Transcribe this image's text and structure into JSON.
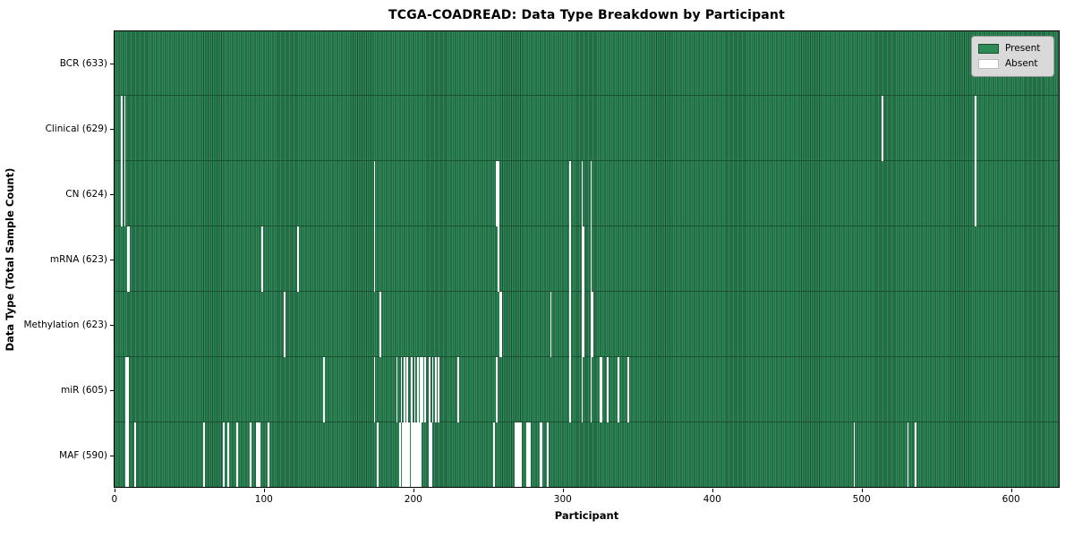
{
  "title": "TCGA-COADREAD: Data Type Breakdown by Participant",
  "x_axis": {
    "label": "Participant",
    "ticks": [
      0,
      100,
      200,
      300,
      400,
      500,
      600
    ]
  },
  "y_axis": {
    "label": "Data Type (Total Sample Count)"
  },
  "legend": [
    {
      "label": "Present",
      "color": "#2e8b57"
    },
    {
      "label": "Absent",
      "color": "#ffffff"
    }
  ],
  "colors": {
    "present": "#2e8b57",
    "present_edge": "#1b4f34",
    "absent": "#ffffff",
    "spine": "#000000",
    "legend_bg": "#d9d9d9",
    "legend_border": "#9a9a9a"
  },
  "chart_data": {
    "type": "heatmap",
    "title": "TCGA-COADREAD: Data Type Breakdown by Participant",
    "xlabel": "Participant",
    "ylabel": "Data Type (Total Sample Count)",
    "xlim": [
      0,
      633
    ],
    "xticks": [
      0,
      100,
      200,
      300,
      400,
      500,
      600
    ],
    "n_participants": 633,
    "legend_position": "upper right",
    "legend_entries": [
      "Present",
      "Absent"
    ],
    "rows": [
      {
        "label": "BCR (633)",
        "data_type": "BCR",
        "present_count": 633,
        "absent_participants": []
      },
      {
        "label": "Clinical (629)",
        "data_type": "Clinical",
        "present_count": 629,
        "absent_participants": [
          5,
          7,
          514,
          576
        ]
      },
      {
        "label": "CN (624)",
        "data_type": "CN",
        "present_count": 624,
        "absent_participants": [
          5,
          7,
          174,
          256,
          257,
          305,
          313,
          319,
          576
        ]
      },
      {
        "label": "mRNA (623)",
        "data_type": "mRNA",
        "present_count": 623,
        "absent_participants": [
          9,
          10,
          99,
          123,
          174,
          257,
          305,
          313,
          314,
          319
        ]
      },
      {
        "label": "Methylation (623)",
        "data_type": "Methylation",
        "present_count": 623,
        "absent_participants": [
          114,
          178,
          258,
          259,
          292,
          305,
          313,
          314,
          319,
          320
        ]
      },
      {
        "label": "miR (605)",
        "data_type": "miR",
        "present_count": 605,
        "absent_participants": [
          8,
          9,
          140,
          174,
          189,
          192,
          194,
          196,
          199,
          201,
          203,
          205,
          206,
          208,
          211,
          213,
          215,
          217,
          230,
          256,
          305,
          313,
          319,
          325,
          326,
          330,
          337,
          344
        ]
      },
      {
        "label": "MAF (590)",
        "data_type": "MAF",
        "present_count": 590,
        "absent_participants": [
          8,
          9,
          14,
          60,
          73,
          76,
          82,
          91,
          95,
          96,
          97,
          103,
          176,
          191,
          193,
          194,
          195,
          196,
          197,
          199,
          200,
          201,
          202,
          203,
          204,
          205,
          211,
          212,
          254,
          268,
          269,
          270,
          271,
          272,
          276,
          277,
          278,
          285,
          286,
          290,
          495,
          531,
          536
        ]
      }
    ]
  }
}
